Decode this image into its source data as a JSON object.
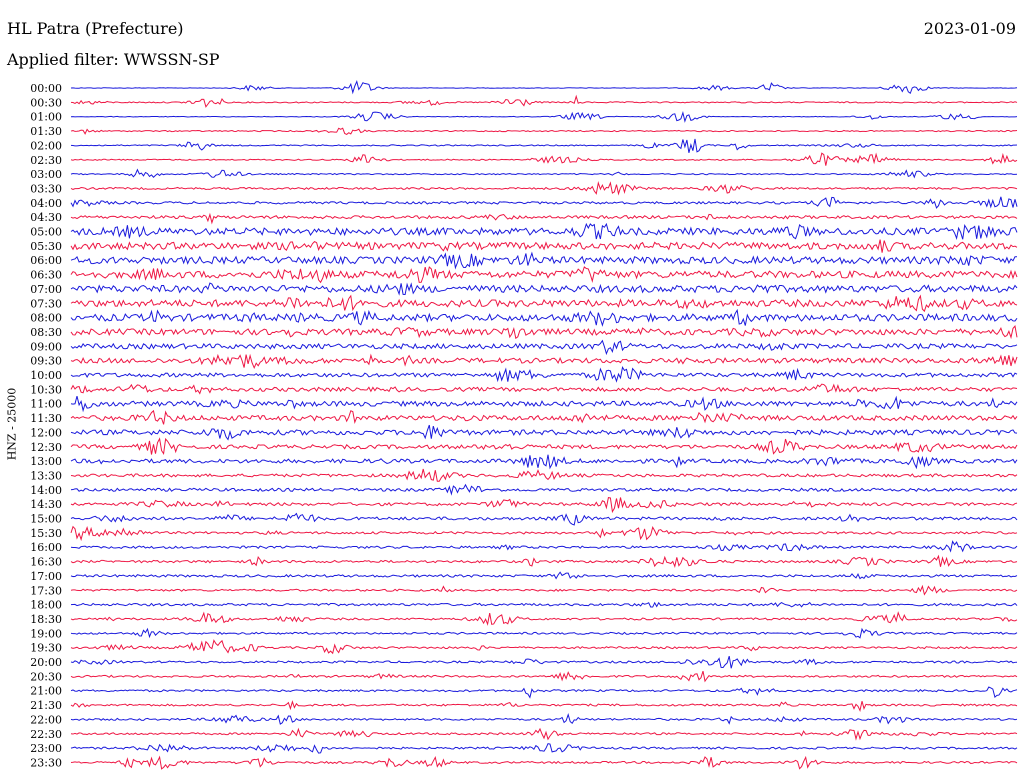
{
  "header": {
    "station": "HL Patra (Prefecture)",
    "filter": "Applied filter: WWSSN-SP",
    "date": "2023-01-09",
    "channel_label": "HNZ - 25000"
  },
  "colors": {
    "trace_a": "#1a1adc",
    "trace_b": "#ee1744"
  },
  "chart_data": {
    "type": "line",
    "title": "HL Patra (Prefecture)",
    "subtitle": "Applied filter: WWSSN-SP",
    "ylabel": "HNZ - 25000",
    "rows": [
      "00:00",
      "00:30",
      "01:00",
      "01:30",
      "02:00",
      "02:30",
      "03:00",
      "03:30",
      "04:00",
      "04:30",
      "05:00",
      "05:30",
      "06:00",
      "06:30",
      "07:00",
      "07:30",
      "08:00",
      "08:30",
      "09:00",
      "09:30",
      "10:00",
      "10:30",
      "11:00",
      "11:30",
      "12:00",
      "12:30",
      "13:00",
      "13:30",
      "14:00",
      "14:30",
      "15:00",
      "15:30",
      "16:00",
      "16:30",
      "17:00",
      "17:30",
      "18:00",
      "18:30",
      "19:00",
      "19:30",
      "20:00",
      "20:30",
      "21:00",
      "21:30",
      "22:00",
      "22:30",
      "23:00",
      "23:30"
    ],
    "row_colors": [
      "blue",
      "red"
    ],
    "noise_level": [
      0.3,
      0.6,
      0.3,
      0.6,
      0.6,
      0.6,
      0.6,
      1.0,
      1.2,
      1.5,
      3.5,
      3.5,
      3.5,
      3.5,
      3.5,
      3.5,
      3.5,
      3.0,
      2.5,
      2.5,
      2.0,
      2.0,
      2.5,
      2.5,
      2.5,
      2.0,
      2.0,
      1.5,
      1.5,
      1.5,
      1.5,
      1.2,
      1.2,
      1.2,
      1.2,
      1.0,
      1.2,
      1.0,
      1.0,
      1.0,
      1.0,
      1.0,
      1.0,
      1.0,
      1.0,
      1.0,
      1.0,
      1.0
    ]
  }
}
